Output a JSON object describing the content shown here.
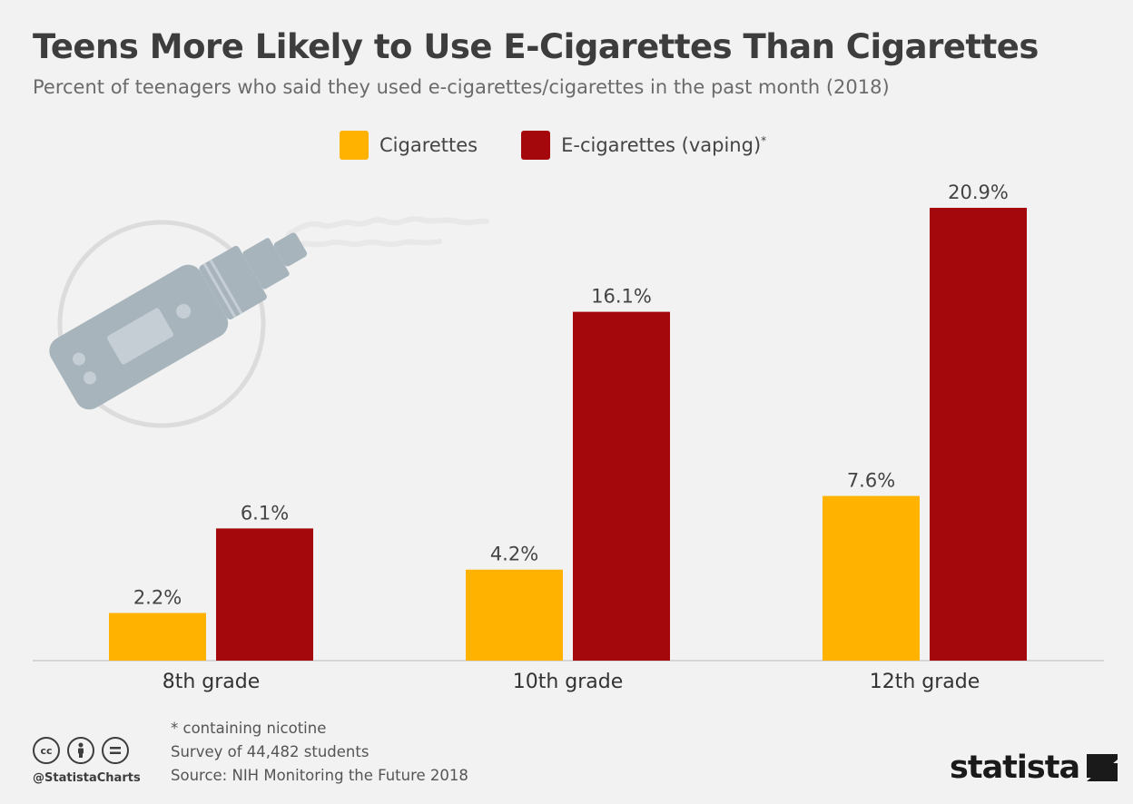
{
  "title": "Teens More Likely to Use E-Cigarettes Than Cigarettes",
  "subtitle": "Percent of teenagers who said they used e-cigarettes/cigarettes in the past month (2018)",
  "footnotes": {
    "asterisk": "* containing nicotine",
    "survey": "Survey of 44,482 students",
    "source": "Source: NIH Monitoring the Future 2018"
  },
  "credit": {
    "handle": "@StatistaCharts",
    "icons": [
      "cc-icon",
      "by-person-icon",
      "nd-equals-icon"
    ]
  },
  "brand": {
    "name": "statista",
    "icon": "statista-logo-icon"
  },
  "illustration": {
    "icon": "vape-pen-icon"
  },
  "colors": {
    "cigarettes": "#ffb300",
    "ecigarettes": "#a4080d",
    "background": "#f2f2f2"
  },
  "chart_data": {
    "type": "bar",
    "title": "Teens More Likely to Use E-Cigarettes Than Cigarettes",
    "categories": [
      "8th grade",
      "10th grade",
      "12th grade"
    ],
    "series": [
      {
        "name": "Cigarettes",
        "values": [
          2.2,
          4.2,
          7.6
        ],
        "labels": [
          "2.2%",
          "4.2%",
          "7.6%"
        ]
      },
      {
        "name": "E-cigarettes (vaping)",
        "values": [
          6.1,
          16.1,
          20.9
        ],
        "labels": [
          "6.1%",
          "16.1%",
          "20.9%"
        ]
      }
    ],
    "series_marker": "*",
    "ylim": [
      0,
      20.9
    ],
    "grid": false,
    "legend": "top-center"
  }
}
